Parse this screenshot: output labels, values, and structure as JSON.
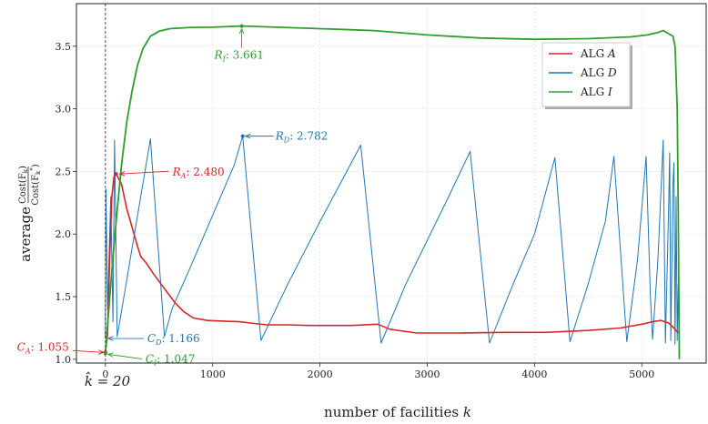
{
  "chart_data": {
    "type": "line",
    "xlabel": "number of facilities",
    "xlabel_var": "k",
    "ylabel_word": "average",
    "ylabel_num": "Cost(F",
    "ylabel_num_sub": "k",
    "ylabel_den": "Cost(F",
    "ylabel_den_sub": "k",
    "ylabel_den_sup": "*",
    "xlim": [
      -270,
      5600
    ],
    "ylim": [
      0.97,
      3.84
    ],
    "xticks": [
      0,
      1000,
      2000,
      3000,
      4000,
      5000
    ],
    "yticks": [
      1.0,
      1.5,
      2.0,
      2.5,
      3.0,
      3.5
    ],
    "grid": true,
    "legend_position": "top-right",
    "khat_label": "k̂ = 20",
    "khat_x": 0,
    "series": [
      {
        "name": "ALG A",
        "name_main": "ALG ",
        "name_var": "A",
        "color": "#d62728",
        "points": [
          [
            0,
            1.055
          ],
          [
            20,
            1.2
          ],
          [
            40,
            1.8
          ],
          [
            60,
            2.3
          ],
          [
            80,
            2.46
          ],
          [
            100,
            2.48
          ],
          [
            150,
            2.4
          ],
          [
            200,
            2.2
          ],
          [
            250,
            2.05
          ],
          [
            300,
            1.9
          ],
          [
            330,
            1.82
          ],
          [
            380,
            1.77
          ],
          [
            450,
            1.68
          ],
          [
            520,
            1.6
          ],
          [
            580,
            1.53
          ],
          [
            650,
            1.45
          ],
          [
            730,
            1.38
          ],
          [
            820,
            1.33
          ],
          [
            950,
            1.31
          ],
          [
            1100,
            1.305
          ],
          [
            1250,
            1.3
          ],
          [
            1350,
            1.29
          ],
          [
            1500,
            1.275
          ],
          [
            1700,
            1.275
          ],
          [
            1900,
            1.27
          ],
          [
            2100,
            1.27
          ],
          [
            2300,
            1.27
          ],
          [
            2540,
            1.28
          ],
          [
            2650,
            1.24
          ],
          [
            2900,
            1.21
          ],
          [
            3300,
            1.21
          ],
          [
            3700,
            1.215
          ],
          [
            4100,
            1.215
          ],
          [
            4500,
            1.23
          ],
          [
            4800,
            1.25
          ],
          [
            5000,
            1.28
          ],
          [
            5100,
            1.3
          ],
          [
            5180,
            1.31
          ],
          [
            5250,
            1.29
          ],
          [
            5300,
            1.25
          ],
          [
            5330,
            1.22
          ],
          [
            5350,
            1.21
          ]
        ]
      },
      {
        "name": "ALG D",
        "name_main": "ALG ",
        "name_var": "D",
        "color": "#1f77b4",
        "points": [
          [
            0,
            1.166
          ],
          [
            5,
            2.36
          ],
          [
            20,
            1.4
          ],
          [
            50,
            2.3
          ],
          [
            70,
            1.3
          ],
          [
            85,
            2.75
          ],
          [
            110,
            1.18
          ],
          [
            420,
            2.76
          ],
          [
            550,
            1.18
          ],
          [
            620,
            1.4
          ],
          [
            800,
            1.75
          ],
          [
            1000,
            2.15
          ],
          [
            1200,
            2.55
          ],
          [
            1280,
            2.782
          ],
          [
            1450,
            1.15
          ],
          [
            1700,
            1.6
          ],
          [
            2000,
            2.1
          ],
          [
            2200,
            2.42
          ],
          [
            2380,
            2.71
          ],
          [
            2570,
            1.13
          ],
          [
            2800,
            1.6
          ],
          [
            3000,
            1.95
          ],
          [
            3200,
            2.3
          ],
          [
            3400,
            2.66
          ],
          [
            3580,
            1.13
          ],
          [
            3800,
            1.6
          ],
          [
            4000,
            2.0
          ],
          [
            4190,
            2.61
          ],
          [
            4330,
            1.14
          ],
          [
            4500,
            1.6
          ],
          [
            4660,
            2.1
          ],
          [
            4740,
            2.62
          ],
          [
            4860,
            1.14
          ],
          [
            4960,
            1.8
          ],
          [
            5040,
            2.62
          ],
          [
            5080,
            1.5
          ],
          [
            5100,
            1.16
          ],
          [
            5150,
            1.8
          ],
          [
            5200,
            2.75
          ],
          [
            5220,
            1.13
          ],
          [
            5250,
            2.2
          ],
          [
            5260,
            2.65
          ],
          [
            5270,
            1.15
          ],
          [
            5290,
            2.4
          ],
          [
            5300,
            2.57
          ],
          [
            5310,
            1.12
          ],
          [
            5320,
            2.3
          ],
          [
            5330,
            1.15
          ],
          [
            5340,
            1.6
          ],
          [
            5350,
            1.05
          ]
        ]
      },
      {
        "name": "ALG I",
        "name_main": "ALG ",
        "name_var": "I",
        "color": "#2ca02c",
        "points": [
          [
            0,
            1.047
          ],
          [
            50,
            1.6
          ],
          [
            100,
            2.1
          ],
          [
            150,
            2.55
          ],
          [
            200,
            2.9
          ],
          [
            250,
            3.15
          ],
          [
            300,
            3.35
          ],
          [
            350,
            3.48
          ],
          [
            420,
            3.58
          ],
          [
            500,
            3.62
          ],
          [
            600,
            3.64
          ],
          [
            800,
            3.65
          ],
          [
            1000,
            3.652
          ],
          [
            1270,
            3.661
          ],
          [
            1500,
            3.655
          ],
          [
            2000,
            3.64
          ],
          [
            2500,
            3.625
          ],
          [
            3000,
            3.59
          ],
          [
            3500,
            3.565
          ],
          [
            4000,
            3.555
          ],
          [
            4500,
            3.56
          ],
          [
            4900,
            3.575
          ],
          [
            5050,
            3.59
          ],
          [
            5150,
            3.61
          ],
          [
            5200,
            3.625
          ],
          [
            5250,
            3.6
          ],
          [
            5290,
            3.58
          ],
          [
            5310,
            3.5
          ],
          [
            5330,
            3.0
          ],
          [
            5340,
            2.2
          ],
          [
            5350,
            1.0
          ]
        ]
      }
    ],
    "annotations": [
      {
        "series": "ALG I",
        "label": "R",
        "sub": "I",
        "value": "3.661",
        "x": 1270,
        "y": 3.661,
        "color": "#2ca02c"
      },
      {
        "series": "ALG D",
        "label": "R",
        "sub": "D",
        "value": "2.782",
        "x": 1280,
        "y": 2.782,
        "color": "#1f77b4"
      },
      {
        "series": "ALG A",
        "label": "R",
        "sub": "A",
        "value": "2.480",
        "x": 100,
        "y": 2.48,
        "color": "#d62728"
      },
      {
        "series": "ALG D",
        "label": "C",
        "sub": "D",
        "value": "1.166",
        "x": 0,
        "y": 1.166,
        "color": "#1f77b4"
      },
      {
        "series": "ALG A",
        "label": "C",
        "sub": "A",
        "value": "1.055",
        "x": 0,
        "y": 1.055,
        "color": "#d62728"
      },
      {
        "series": "ALG I",
        "label": "C",
        "sub": "I",
        "value": "1.047",
        "x": 0,
        "y": 1.047,
        "color": "#2ca02c"
      }
    ]
  }
}
